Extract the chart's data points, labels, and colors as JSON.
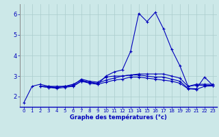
{
  "xlabel": "Graphe des températures (°c)",
  "bg_color": "#cce8e8",
  "plot_bg_color": "#cce8e8",
  "line_color": "#0000bb",
  "grid_color": "#aacccc",
  "axis_color": "#0000bb",
  "xlim": [
    -0.5,
    23.5
  ],
  "ylim": [
    1.5,
    6.5
  ],
  "yticks": [
    2,
    3,
    4,
    5,
    6
  ],
  "xticks": [
    0,
    1,
    2,
    3,
    4,
    5,
    6,
    7,
    8,
    9,
    10,
    11,
    12,
    13,
    14,
    15,
    16,
    17,
    18,
    19,
    20,
    21,
    22,
    23
  ],
  "series": [
    {
      "x": [
        0,
        1,
        2,
        3,
        4,
        5,
        6,
        7,
        8,
        9,
        10,
        11,
        12,
        13,
        14,
        15,
        16,
        17,
        18,
        19,
        20,
        21,
        22,
        23
      ],
      "y": [
        1.7,
        2.5,
        2.6,
        2.5,
        2.5,
        2.5,
        2.6,
        2.8,
        2.7,
        2.6,
        3.0,
        3.2,
        3.3,
        4.2,
        6.05,
        5.65,
        6.1,
        5.3,
        4.3,
        3.5,
        2.5,
        2.6,
        2.6,
        2.6
      ]
    },
    {
      "x": [
        2,
        3,
        4,
        5,
        6,
        7,
        8,
        9,
        10,
        11,
        12,
        13,
        14,
        15,
        16,
        17,
        18,
        19,
        20,
        21,
        22,
        23
      ],
      "y": [
        2.5,
        2.5,
        2.45,
        2.5,
        2.5,
        2.75,
        2.7,
        2.65,
        2.8,
        2.9,
        3.0,
        3.05,
        3.1,
        3.1,
        3.1,
        3.1,
        3.0,
        2.9,
        2.5,
        2.55,
        2.55,
        2.55
      ]
    },
    {
      "x": [
        2,
        3,
        4,
        5,
        6,
        7,
        8,
        9,
        10,
        11,
        12,
        13,
        14,
        15,
        16,
        17,
        18,
        19,
        20,
        21,
        22,
        23
      ],
      "y": [
        2.5,
        2.45,
        2.45,
        2.5,
        2.55,
        2.85,
        2.75,
        2.7,
        2.95,
        3.0,
        3.0,
        3.05,
        3.05,
        3.0,
        2.95,
        2.95,
        2.85,
        2.75,
        2.4,
        2.38,
        2.95,
        2.55
      ]
    },
    {
      "x": [
        2,
        3,
        4,
        5,
        6,
        7,
        8,
        9,
        10,
        11,
        12,
        13,
        14,
        15,
        16,
        17,
        18,
        19,
        20,
        21,
        22,
        23
      ],
      "y": [
        2.5,
        2.45,
        2.4,
        2.45,
        2.5,
        2.75,
        2.65,
        2.6,
        2.7,
        2.8,
        2.85,
        2.95,
        2.95,
        2.9,
        2.85,
        2.8,
        2.75,
        2.65,
        2.38,
        2.35,
        2.5,
        2.52
      ]
    }
  ]
}
